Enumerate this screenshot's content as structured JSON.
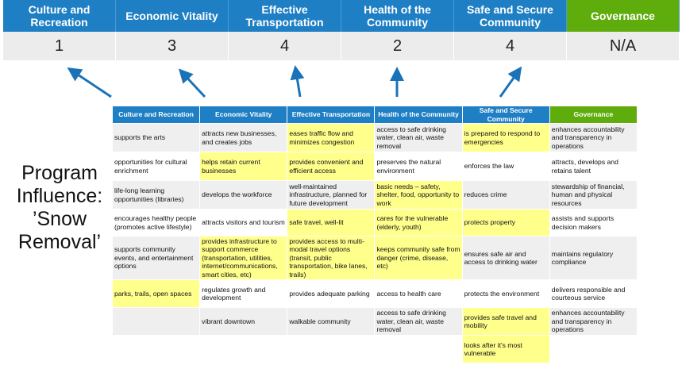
{
  "categories": [
    "Culture and Recreation",
    "Economic Vitality",
    "Effective Transportation",
    "Health of the Community",
    "Safe and Secure Community",
    "Governance"
  ],
  "scores": [
    "1",
    "3",
    "4",
    "2",
    "4",
    "N/A"
  ],
  "program_label": "Program Influence: ’Snow Removal’",
  "colors": {
    "header_blue": "#1f7fc4",
    "governance_green": "#5fac0d",
    "highlight": "#ffff8c",
    "arrow": "#1a73b8"
  },
  "table": {
    "headers": [
      "Culture and Recreation",
      "Economic Vitality",
      "Effective Transportation",
      "Health of the Community",
      "Safe and Secure Community",
      "Governance"
    ],
    "rows": [
      [
        "supports the arts",
        "attracts new businesses, and creates jobs",
        "eases traffic flow and minimizes congestion",
        "access to safe drinking water, clean air, waste removal",
        "is prepared to respond to emergencies",
        "enhances accountability and transparency in operations"
      ],
      [
        "opportunities for cultural enrichment",
        "helps retain current businesses",
        "provides convenient and efficient access",
        "preserves the natural environment",
        "enforces the law",
        "attracts, develops and retains talent"
      ],
      [
        "life-long learning opportunities (libraries)",
        "develops the workforce",
        "well-maintained infrastructure, planned for future development",
        "basic needs – safety, shelter, food, opportunity to work",
        "reduces crime",
        "stewardship of financial, human and physical resources"
      ],
      [
        "encourages healthy people (promotes active lifestyle)",
        "attracts visitors and tourism",
        "safe travel, well-lit",
        "cares for the vulnerable (elderly, youth)",
        "protects property",
        "assists and supports decision makers"
      ],
      [
        "supports community events, and entertainment options",
        "provides infrastructure to support commerce (transportation, utilities, internet/communications, smart cities, etc)",
        "provides access to multi-modal travel options (transit, public transportation, bike lanes, trails)",
        "keeps community safe from danger (crime, disease, etc)",
        "ensures safe air and access to drinking water",
        "maintains regulatory compliance"
      ],
      [
        "parks, trails, open spaces",
        "regulates growth and development",
        "provides adequate parking",
        "access to health care",
        "protects the environment",
        "delivers responsible and courteous service"
      ],
      [
        "",
        "vibrant downtown",
        "walkable community",
        "access to safe drinking water, clean air, waste removal",
        "provides safe travel and mobility",
        "enhances accountability and transparency in operations"
      ],
      [
        "",
        "",
        "",
        "",
        "looks after it's most vulnerable",
        ""
      ]
    ],
    "highlighted": [
      [
        0,
        2
      ],
      [
        0,
        4
      ],
      [
        1,
        1
      ],
      [
        1,
        2
      ],
      [
        2,
        3
      ],
      [
        3,
        2
      ],
      [
        3,
        3
      ],
      [
        3,
        4
      ],
      [
        4,
        1
      ],
      [
        4,
        2
      ],
      [
        4,
        3
      ],
      [
        5,
        0
      ],
      [
        6,
        4
      ],
      [
        7,
        4
      ]
    ]
  }
}
